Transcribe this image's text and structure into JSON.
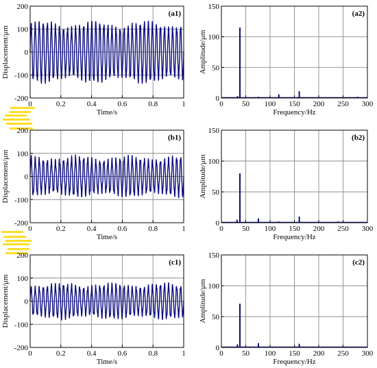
{
  "colors": {
    "signal": "#0a0a80",
    "grid": "#8a8a8a",
    "noise_pink": "#ee82ee",
    "noise_yellow": "#ffd700"
  },
  "chart_data": [
    {
      "id": "a1",
      "type": "line",
      "panel_label": "(a1)",
      "xlabel": "Time/s",
      "ylabel": "Displacement/μm",
      "xlim": [
        0,
        1
      ],
      "ylim": [
        -200,
        200
      ],
      "xticks": [
        "0",
        "0.2",
        "0.4",
        "0.6",
        "0.8",
        "1"
      ],
      "yticks": [
        "200",
        "100",
        "0",
        "-100",
        "-200"
      ],
      "grid": true,
      "series": [
        {
          "frequency_hz": 38,
          "amplitude_um": 128,
          "secondary_frequency_hz": 160,
          "secondary_amplitude_um": 10
        }
      ]
    },
    {
      "id": "a2",
      "type": "bar",
      "panel_label": "(a2)",
      "xlabel": "Frequency/Hz",
      "ylabel": "Amplitude/μm",
      "xlim": [
        0,
        300
      ],
      "ylim": [
        0,
        150
      ],
      "xticks": [
        "0",
        "50",
        "100",
        "150",
        "200",
        "250",
        "300"
      ],
      "yticks": [
        "150",
        "100",
        "50",
        "0"
      ],
      "grid": true,
      "x": [
        5,
        33,
        38,
        76,
        118,
        160,
        200,
        240,
        280
      ],
      "values": [
        1,
        3,
        115,
        2,
        6,
        11,
        1,
        1,
        2
      ]
    },
    {
      "id": "b1",
      "type": "line",
      "panel_label": "(b1)",
      "xlabel": "Time/s",
      "ylabel": "Displacement/μm",
      "xlim": [
        0,
        1
      ],
      "ylim": [
        -200,
        200
      ],
      "xticks": [
        "0",
        "0.2",
        "0.4",
        "0.6",
        "0.8",
        "1"
      ],
      "yticks": [
        "200",
        "100",
        "0",
        "-100",
        "-200"
      ],
      "grid": true,
      "series": [
        {
          "frequency_hz": 38,
          "amplitude_um": 82,
          "secondary_frequency_hz": 160,
          "secondary_amplitude_um": 10
        }
      ]
    },
    {
      "id": "b2",
      "type": "bar",
      "panel_label": "(b2)",
      "xlabel": "Frequency/Hz",
      "ylabel": "Amplitude/μm",
      "xlim": [
        0,
        300
      ],
      "ylim": [
        0,
        150
      ],
      "xticks": [
        "0",
        "50",
        "100",
        "150",
        "200",
        "250",
        "300"
      ],
      "yticks": [
        "150",
        "100",
        "50",
        "0"
      ],
      "grid": true,
      "x": [
        5,
        32,
        38,
        76,
        118,
        160,
        200,
        240,
        285
      ],
      "values": [
        1,
        5,
        80,
        7,
        2,
        10,
        1,
        2,
        1
      ]
    },
    {
      "id": "c1",
      "type": "line",
      "panel_label": "(c1)",
      "xlabel": "Time/s",
      "ylabel": "Displacement/μm",
      "xlim": [
        0,
        1
      ],
      "ylim": [
        -200,
        200
      ],
      "xticks": [
        "0",
        "0.2",
        "0.4",
        "0.6",
        "0.8",
        "1"
      ],
      "yticks": [
        "200",
        "100",
        "0",
        "-100",
        "-200"
      ],
      "grid": true,
      "series": [
        {
          "frequency_hz": 38,
          "amplitude_um": 72,
          "secondary_frequency_hz": 160,
          "secondary_amplitude_um": 8
        }
      ]
    },
    {
      "id": "c2",
      "type": "bar",
      "panel_label": "(c2)",
      "xlabel": "Frequency/Hz",
      "ylabel": "Amplitude/μm",
      "xlim": [
        0,
        300
      ],
      "ylim": [
        0,
        150
      ],
      "xticks": [
        "0",
        "50",
        "100",
        "150",
        "200",
        "250",
        "300"
      ],
      "yticks": [
        "150",
        "100",
        "50",
        "0"
      ],
      "grid": true,
      "x": [
        5,
        33,
        38,
        76,
        118,
        160,
        200,
        240,
        285
      ],
      "values": [
        1,
        5,
        71,
        7,
        1,
        6,
        1,
        1,
        1
      ]
    }
  ]
}
